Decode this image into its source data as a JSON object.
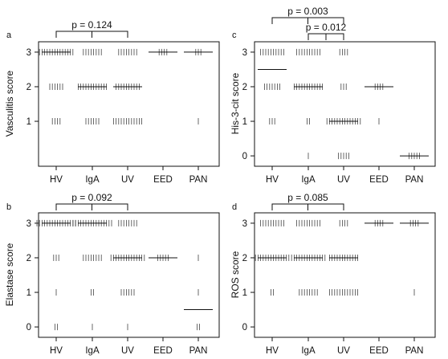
{
  "chart_data": [
    {
      "panel_letter": "a",
      "type": "scatter",
      "ylabel": "Vasculitis score",
      "categories": [
        "HV",
        "IgA",
        "UV",
        "EED",
        "PAN"
      ],
      "yticks": [
        1,
        2,
        3
      ],
      "ylim": [
        -0.3,
        3.3
      ],
      "bracket": {
        "from": "HV",
        "to": "UV",
        "label": "p = 0.124"
      },
      "points": [
        {
          "group": "HV",
          "y": 3,
          "n": 14
        },
        {
          "group": "HV",
          "y": 2,
          "n": 6
        },
        {
          "group": "HV",
          "y": 1,
          "n": 4
        },
        {
          "group": "IgA",
          "y": 3,
          "n": 8
        },
        {
          "group": "IgA",
          "y": 2,
          "n": 12
        },
        {
          "group": "IgA",
          "y": 1,
          "n": 6
        },
        {
          "group": "UV",
          "y": 3,
          "n": 8
        },
        {
          "group": "UV",
          "y": 2,
          "n": 10
        },
        {
          "group": "UV",
          "y": 1,
          "n": 12
        },
        {
          "group": "EED",
          "y": 3,
          "n": 4
        },
        {
          "group": "PAN",
          "y": 3,
          "n": 3
        },
        {
          "group": "PAN",
          "y": 1,
          "n": 1
        }
      ],
      "medians": {
        "HV": 3,
        "IgA": 2,
        "UV": 2,
        "EED": 3,
        "PAN": 3
      }
    },
    {
      "panel_letter": "c",
      "type": "scatter",
      "ylabel": "His-3-cit score",
      "categories": [
        "HV",
        "IgA",
        "UV",
        "EED",
        "PAN"
      ],
      "yticks": [
        0,
        1,
        2,
        3
      ],
      "ylim": [
        -0.3,
        3.3
      ],
      "brackets": [
        {
          "from": "HV",
          "to": "UV",
          "label": "p = 0.003"
        },
        {
          "from": "IgA",
          "to": "UV",
          "label": "p = 0.012"
        }
      ],
      "points": [
        {
          "group": "HV",
          "y": 3,
          "n": 10
        },
        {
          "group": "HV",
          "y": 2,
          "n": 7
        },
        {
          "group": "HV",
          "y": 1,
          "n": 3
        },
        {
          "group": "IgA",
          "y": 3,
          "n": 10
        },
        {
          "group": "IgA",
          "y": 2,
          "n": 12
        },
        {
          "group": "IgA",
          "y": 1,
          "n": 2
        },
        {
          "group": "IgA",
          "y": 0,
          "n": 1
        },
        {
          "group": "UV",
          "y": 3,
          "n": 4
        },
        {
          "group": "UV",
          "y": 2,
          "n": 3
        },
        {
          "group": "UV",
          "y": 1,
          "n": 14
        },
        {
          "group": "UV",
          "y": 0,
          "n": 5
        },
        {
          "group": "EED",
          "y": 2,
          "n": 4
        },
        {
          "group": "EED",
          "y": 1,
          "n": 1
        },
        {
          "group": "PAN",
          "y": 0,
          "n": 5
        }
      ],
      "medians": {
        "HV": 2.5,
        "IgA": 2,
        "UV": 1,
        "EED": 2,
        "PAN": 0
      }
    },
    {
      "panel_letter": "b",
      "type": "scatter",
      "ylabel": "Elastase score",
      "categories": [
        "HV",
        "IgA",
        "UV",
        "EED",
        "PAN"
      ],
      "yticks": [
        0,
        1,
        2,
        3
      ],
      "ylim": [
        -0.3,
        3.3
      ],
      "bracket": {
        "from": "HV",
        "to": "UV",
        "label": "p = 0.092"
      },
      "points": [
        {
          "group": "HV",
          "y": 3,
          "n": 16
        },
        {
          "group": "HV",
          "y": 2,
          "n": 3
        },
        {
          "group": "HV",
          "y": 1,
          "n": 1
        },
        {
          "group": "HV",
          "y": 0,
          "n": 2
        },
        {
          "group": "IgA",
          "y": 3,
          "n": 16
        },
        {
          "group": "IgA",
          "y": 2,
          "n": 8
        },
        {
          "group": "IgA",
          "y": 1,
          "n": 2
        },
        {
          "group": "IgA",
          "y": 0,
          "n": 1
        },
        {
          "group": "UV",
          "y": 3,
          "n": 8
        },
        {
          "group": "UV",
          "y": 2,
          "n": 14
        },
        {
          "group": "UV",
          "y": 1,
          "n": 6
        },
        {
          "group": "UV",
          "y": 0,
          "n": 1
        },
        {
          "group": "EED",
          "y": 2,
          "n": 5
        },
        {
          "group": "PAN",
          "y": 2,
          "n": 1
        },
        {
          "group": "PAN",
          "y": 1,
          "n": 1
        },
        {
          "group": "PAN",
          "y": 0,
          "n": 2
        }
      ],
      "medians": {
        "HV": 3,
        "IgA": 3,
        "UV": 2,
        "EED": 2,
        "PAN": 0.5
      }
    },
    {
      "panel_letter": "d",
      "type": "scatter",
      "ylabel": "ROS score",
      "categories": [
        "HV",
        "IgA",
        "UV",
        "EED",
        "PAN"
      ],
      "yticks": [
        0,
        1,
        2,
        3
      ],
      "ylim": [
        -0.3,
        3.3
      ],
      "bracket": {
        "from": "HV",
        "to": "UV",
        "label": "p = 0.085"
      },
      "points": [
        {
          "group": "HV",
          "y": 3,
          "n": 10
        },
        {
          "group": "HV",
          "y": 2,
          "n": 14
        },
        {
          "group": "HV",
          "y": 1,
          "n": 2
        },
        {
          "group": "IgA",
          "y": 3,
          "n": 10
        },
        {
          "group": "IgA",
          "y": 2,
          "n": 14
        },
        {
          "group": "IgA",
          "y": 1,
          "n": 8
        },
        {
          "group": "UV",
          "y": 3,
          "n": 4
        },
        {
          "group": "UV",
          "y": 2,
          "n": 12
        },
        {
          "group": "UV",
          "y": 1,
          "n": 12
        },
        {
          "group": "EED",
          "y": 3,
          "n": 4
        },
        {
          "group": "PAN",
          "y": 3,
          "n": 4
        },
        {
          "group": "PAN",
          "y": 1,
          "n": 1
        }
      ],
      "medians": {
        "HV": 2,
        "IgA": 2,
        "UV": 2,
        "EED": 3,
        "PAN": 3
      }
    }
  ]
}
